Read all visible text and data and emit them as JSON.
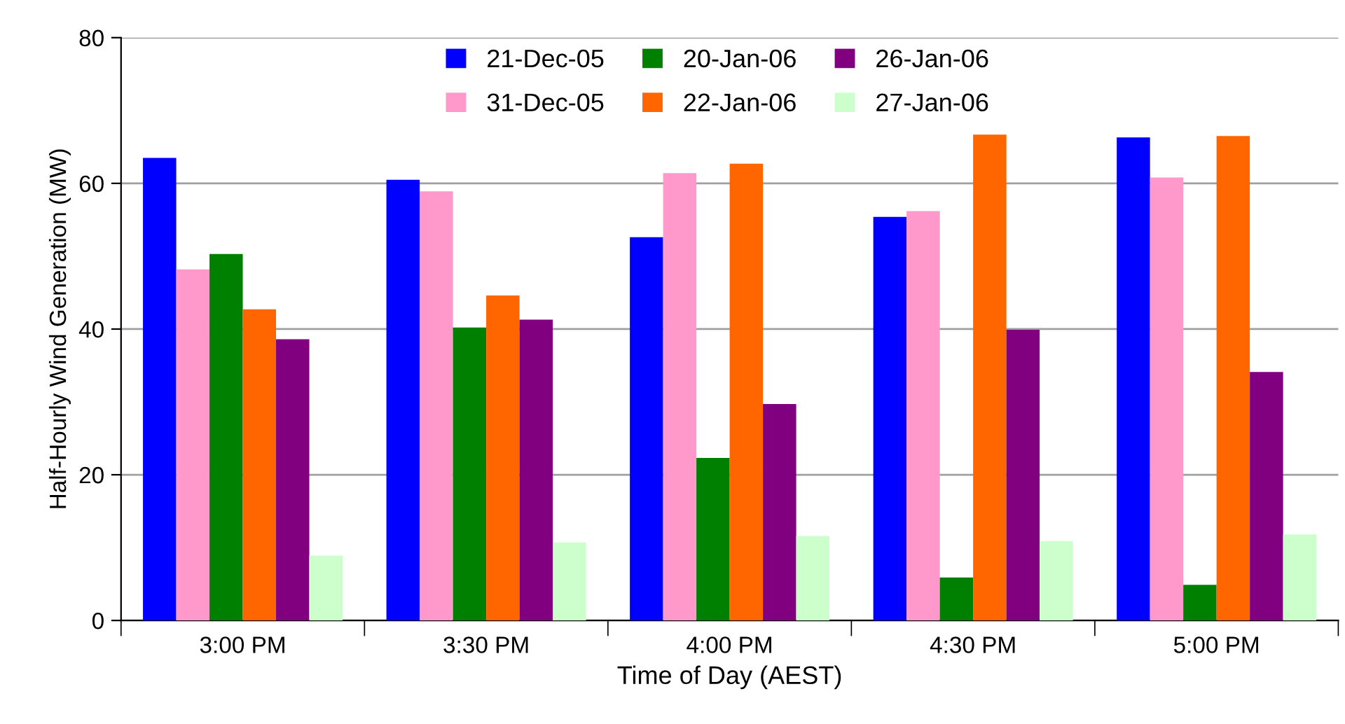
{
  "chart_data": {
    "type": "bar",
    "xlabel": "Time of Day (AEST)",
    "ylabel": "Half-Hourly Wind Generation (MW)",
    "categories": [
      "3:00 PM",
      "3:30 PM",
      "4:00 PM",
      "4:30 PM",
      "5:00 PM"
    ],
    "series": [
      {
        "name": "21-Dec-05",
        "color": "#0000ff",
        "values": [
          63.5,
          60.5,
          52.6,
          55.4,
          66.3
        ]
      },
      {
        "name": "31-Dec-05",
        "color": "#ff99cc",
        "values": [
          48.2,
          58.9,
          61.4,
          56.2,
          60.8
        ]
      },
      {
        "name": "20-Jan-06",
        "color": "#008000",
        "values": [
          50.3,
          40.2,
          22.3,
          5.9,
          4.9
        ]
      },
      {
        "name": "22-Jan-06",
        "color": "#ff6600",
        "values": [
          42.7,
          44.6,
          62.7,
          66.7,
          66.5
        ]
      },
      {
        "name": "26-Jan-06",
        "color": "#800080",
        "values": [
          38.6,
          41.3,
          29.7,
          39.9,
          34.1
        ]
      },
      {
        "name": "27-Jan-06",
        "color": "#ccffcc",
        "values": [
          8.9,
          10.7,
          11.6,
          10.9,
          11.8
        ]
      }
    ],
    "ylim": [
      0,
      80
    ],
    "yticks": [
      0,
      20,
      40,
      60,
      80
    ],
    "grid": "y",
    "legend": "top"
  }
}
